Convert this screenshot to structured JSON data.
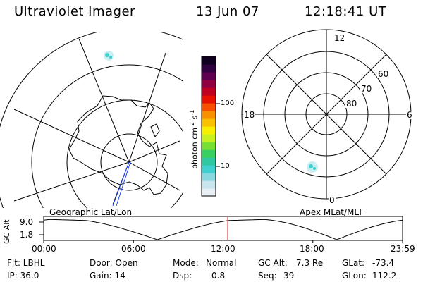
{
  "header": {
    "title": "Ultraviolet Imager",
    "date": "13 Jun 07",
    "time": "12:18:41 UT"
  },
  "geo_map": {
    "label": "Geographic Lat/Lon"
  },
  "apex_map": {
    "label": "Apex MLat/MLT",
    "mlt_labels": {
      "top": "12",
      "bottom": "0",
      "left": "18",
      "right": "6"
    },
    "lat_labels": [
      "60",
      "70",
      "80"
    ]
  },
  "colorbar": {
    "unit": "photon cm",
    "unit_exp1": "-2",
    "unit_mid": "s",
    "unit_exp2": "-1",
    "ticks": [
      "100",
      "10"
    ],
    "colors": [
      "#e8f0f6",
      "#c8e4ec",
      "#88d8e0",
      "#40d0d0",
      "#30c8a0",
      "#38d060",
      "#78e030",
      "#c8f020",
      "#f8f000",
      "#f8c000",
      "#f89000",
      "#f85000",
      "#e81000",
      "#c00020",
      "#900040",
      "#600050",
      "#300040",
      "#100020"
    ]
  },
  "altitude_plot": {
    "ylabel": "GC Alt",
    "yticks": [
      "9.0",
      "1.8"
    ],
    "xticks": [
      "00:00",
      "06:00",
      "12:00",
      "18:00",
      "23:59"
    ],
    "current_marker_hours": 12.31
  },
  "footer": {
    "row1": {
      "flt": "Flt: LBHL",
      "door": "Door: Open",
      "mode_label": "Mode:",
      "mode_value": "Normal",
      "alt_label": "GC Alt:",
      "alt_value": "7.3 Re",
      "glat_label": "GLat:",
      "glat_value": "-73.4"
    },
    "row2": {
      "ip": "IP: 36.0",
      "gain": "Gain: 14",
      "dsp_label": "Dsp:",
      "dsp_value": "0.8",
      "seq_label": "Seq:",
      "seq_value": "39",
      "glon_label": "GLon:",
      "glon_value": "112.2"
    }
  }
}
